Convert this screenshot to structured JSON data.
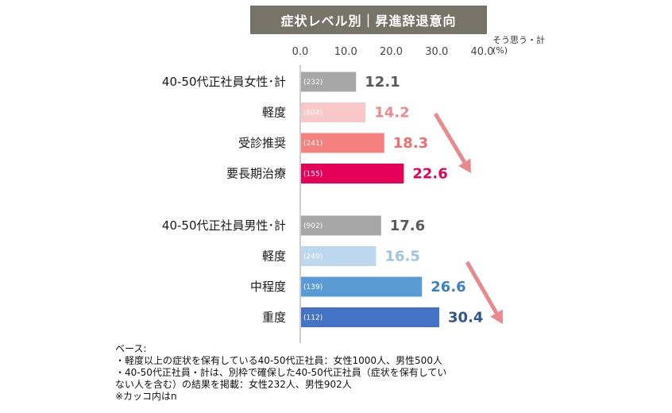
{
  "title": "症状レベル別｜昇進辞退意向",
  "unit_label": "そう思う・計(%)",
  "colors": {
    "title_bg": "#777369",
    "arrow": "#e8898b",
    "axis_line": "#bfbfbf"
  },
  "chart_data": {
    "type": "bar",
    "orientation": "horizontal",
    "xlim": [
      0,
      40
    ],
    "ticks": [
      "0.0",
      "10.0",
      "20.0",
      "30.0",
      "40.0"
    ],
    "tick_values": [
      0,
      10,
      20,
      30,
      40
    ],
    "groups": [
      {
        "bars": [
          {
            "label": "40-50代正社員女性･計",
            "n": "(232)",
            "value": 12.1,
            "value_label": "12.1",
            "color": "#a6a6a6",
            "text_color": "#595959"
          },
          {
            "label": "軽度",
            "n": "(604)",
            "value": 14.2,
            "value_label": "14.2",
            "color": "#f8c8c8",
            "text_color": "#ec8b8b"
          },
          {
            "label": "受診推奨",
            "n": "(241)",
            "value": 18.3,
            "value_label": "18.3",
            "color": "#f48080",
            "text_color": "#ef6f6f"
          },
          {
            "label": "要長期治療",
            "n": "(155)",
            "value": 22.6,
            "value_label": "22.6",
            "color": "#e5005a",
            "text_color": "#e5005a"
          }
        ]
      },
      {
        "bars": [
          {
            "label": "40-50代正社員男性･計",
            "n": "(902)",
            "value": 17.6,
            "value_label": "17.6",
            "color": "#a6a6a6",
            "text_color": "#595959"
          },
          {
            "label": "軽度",
            "n": "(249)",
            "value": 16.5,
            "value_label": "16.5",
            "color": "#bdd7ee",
            "text_color": "#9dc3e6"
          },
          {
            "label": "中程度",
            "n": "(139)",
            "value": 26.6,
            "value_label": "26.6",
            "color": "#5b9bd5",
            "text_color": "#3b82c4"
          },
          {
            "label": "重度",
            "n": "(112)",
            "value": 30.4,
            "value_label": "30.4",
            "color": "#4472c4",
            "text_color": "#2f5597"
          }
        ]
      }
    ]
  },
  "notes": [
    "ベース:",
    "・軽度以上の症状を保有している40-50代正社員：女性1000人、男性500人",
    "・40-50代正社員・計は、別枠で確保した40-50代正社員（症状を保有してい",
    "ない人を含む）の結果を掲載：女性232人、男性902人",
    "※カッコ内はn"
  ]
}
